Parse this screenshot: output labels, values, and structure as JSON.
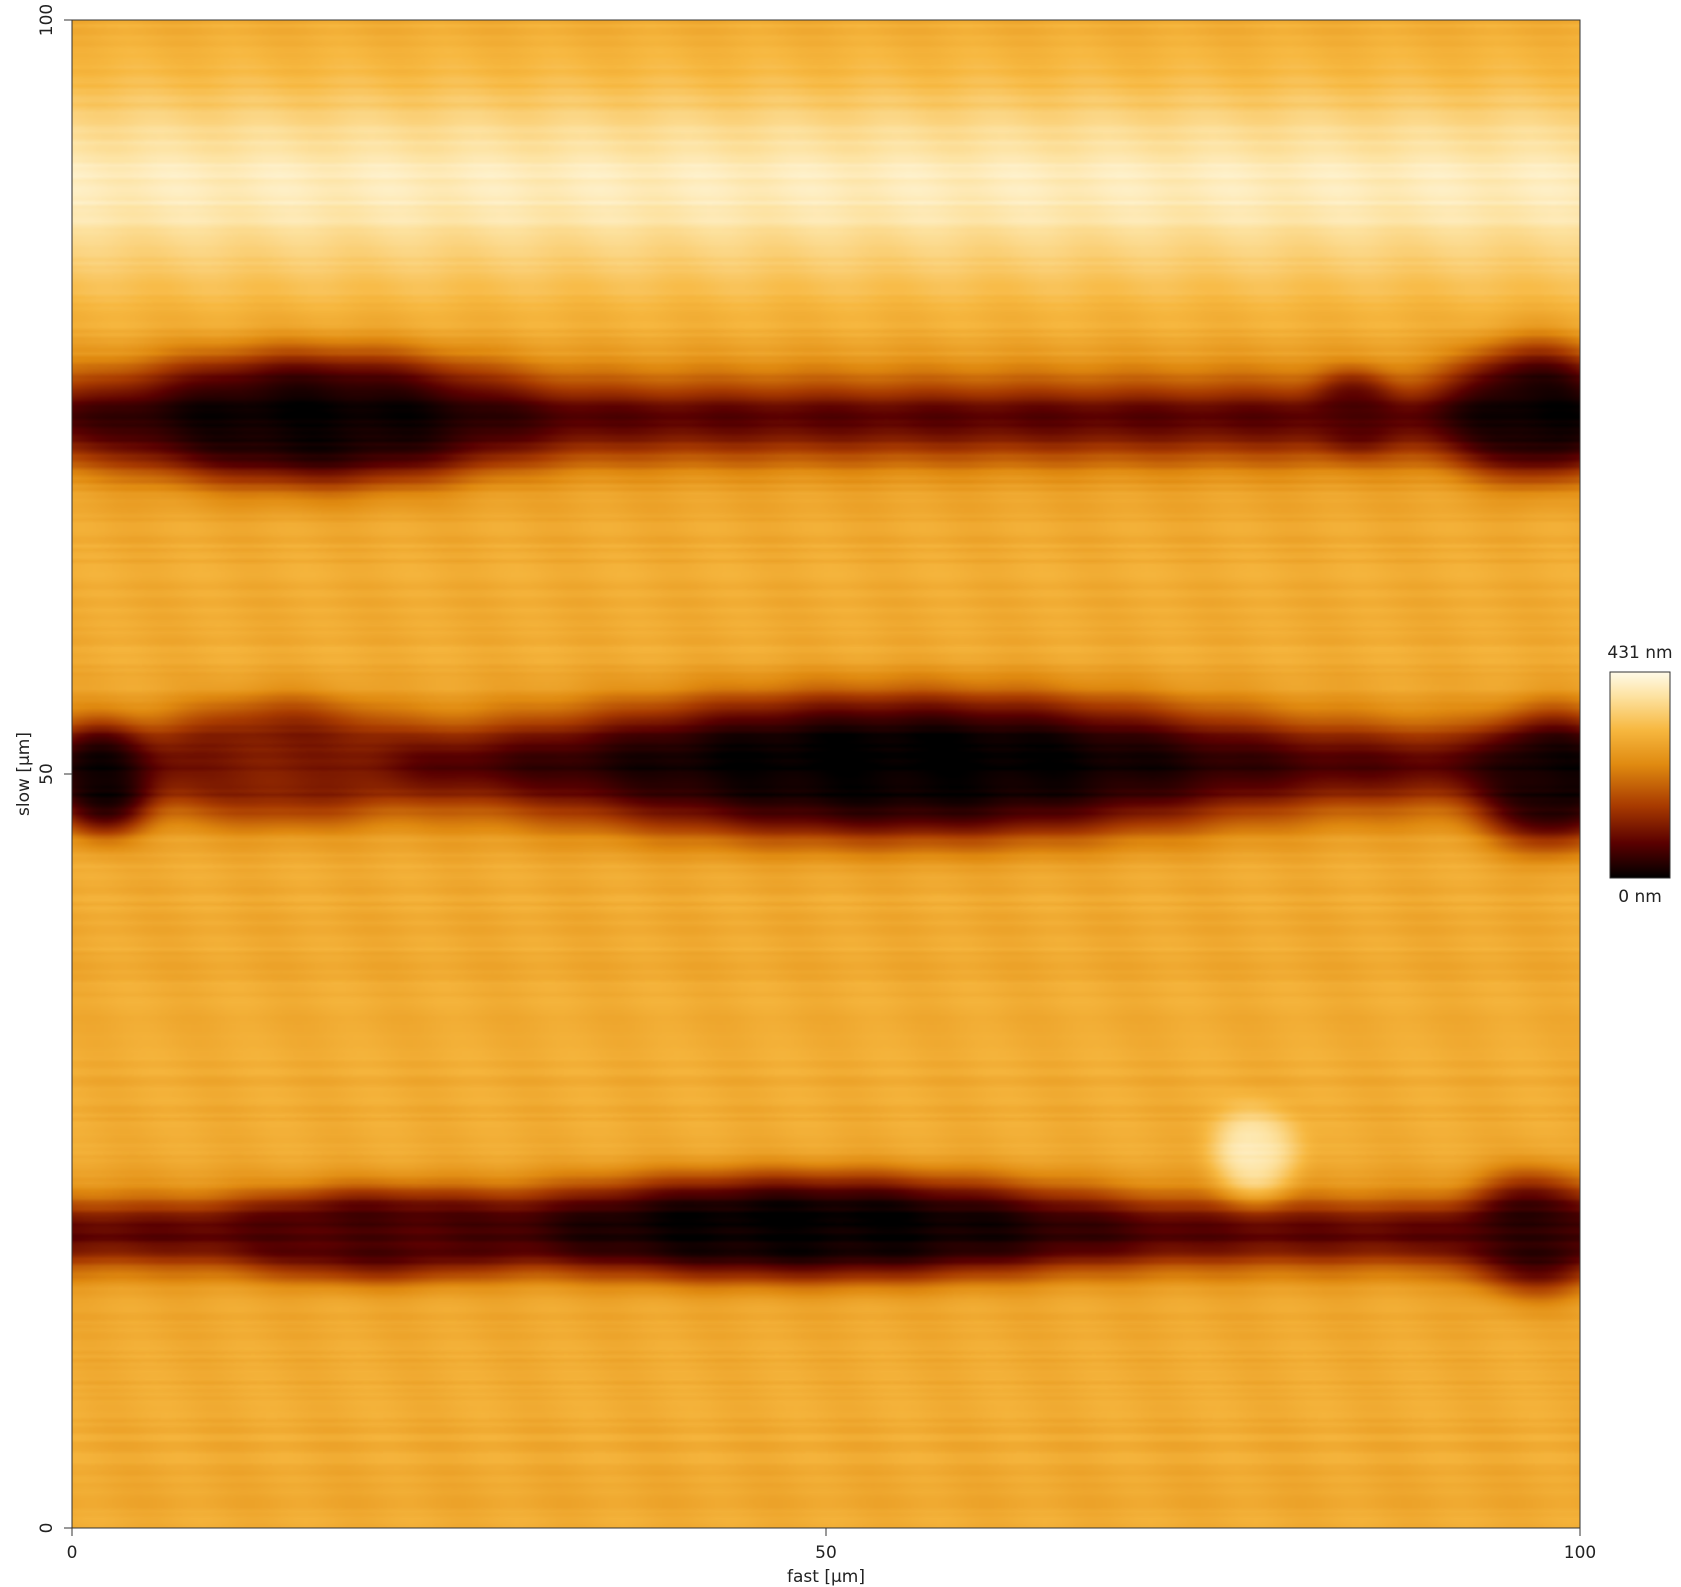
{
  "chart_data": {
    "type": "heatmap",
    "title": "",
    "xlabel": "fast [µm]",
    "ylabel": "slow [µm]",
    "xlim": [
      0,
      100
    ],
    "ylim": [
      0,
      100
    ],
    "x_ticks": [
      "0",
      "50",
      "100"
    ],
    "y_ticks": [
      "0",
      "50",
      "100"
    ],
    "colorbar": {
      "max_label": "431 nm",
      "min_label": "0 nm",
      "range_nm": [
        0,
        431
      ],
      "colormap": [
        "#000000",
        "#5a0000",
        "#a83a00",
        "#e08a10",
        "#f7b840",
        "#fde2a0",
        "#fffbe8"
      ]
    },
    "features": [
      {
        "shape": "band",
        "y_center": 89,
        "y_width": 6,
        "height_nm": 400
      },
      {
        "shape": "band",
        "y_center": 73.5,
        "y_width": 3,
        "height_nm": 75
      },
      {
        "shape": "band",
        "y_center": 50.5,
        "y_width": 3,
        "height_nm": 75
      },
      {
        "shape": "band",
        "y_center": 19.5,
        "y_width": 2.5,
        "height_nm": 75
      },
      {
        "shape": "blob",
        "x": 16,
        "y": 73.5,
        "x_radius": 14,
        "y_radius": 4.5,
        "height_nm": 10
      },
      {
        "shape": "blob",
        "x": 97,
        "y": 74,
        "x_radius": 6,
        "y_radius": 4.5,
        "height_nm": 10
      },
      {
        "shape": "blob",
        "x": 85,
        "y": 74,
        "x_radius": 3,
        "y_radius": 2.5,
        "height_nm": 70
      },
      {
        "shape": "blob",
        "x": 55,
        "y": 50.5,
        "x_radius": 25,
        "y_radius": 5,
        "height_nm": 0
      },
      {
        "shape": "blob",
        "x": 2,
        "y": 49.5,
        "x_radius": 3.5,
        "y_radius": 3.5,
        "height_nm": 10
      },
      {
        "shape": "blob",
        "x": 98,
        "y": 49.5,
        "x_radius": 5,
        "y_radius": 4.5,
        "height_nm": 10
      },
      {
        "shape": "blob",
        "x": 14,
        "y": 51,
        "x_radius": 8,
        "y_radius": 4,
        "height_nm": 110
      },
      {
        "shape": "blob",
        "x": 48.5,
        "y": 20,
        "x_radius": 21,
        "y_radius": 3.5,
        "height_nm": 5
      },
      {
        "shape": "blob",
        "x": 97,
        "y": 19.5,
        "x_radius": 5,
        "y_radius": 4,
        "height_nm": 40
      },
      {
        "shape": "blob",
        "x": 20,
        "y": 19.5,
        "x_radius": 10,
        "y_radius": 3,
        "height_nm": 60
      },
      {
        "shape": "blob",
        "x": 78.5,
        "y": 25,
        "x_radius": 3,
        "y_radius": 3,
        "height_nm": 390
      }
    ]
  }
}
